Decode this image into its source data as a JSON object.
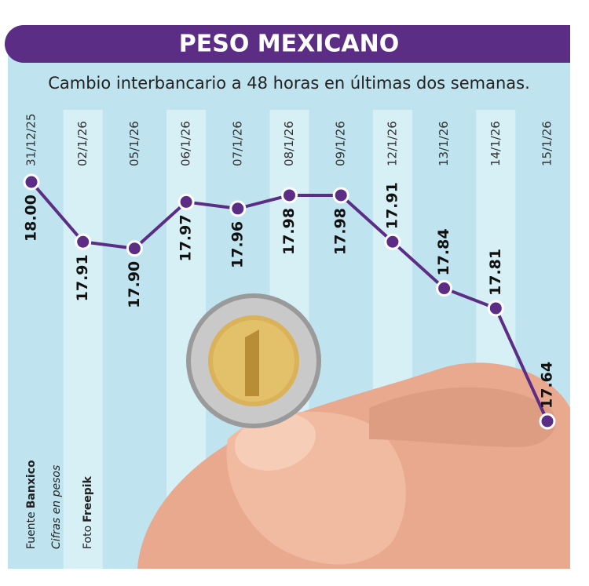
{
  "chart_data": {
    "type": "line",
    "title": "PESO MEXICANO",
    "subtitle": "Cambio interbancario a 48 horas en últimas dos semanas.",
    "categories": [
      "31/12/25",
      "02/1/26",
      "05/1/26",
      "06/1/26",
      "07/1/26",
      "08/1/26",
      "09/1/26",
      "12/1/26",
      "13/1/26",
      "14/1/26",
      "15/1/26"
    ],
    "values": [
      18.0,
      17.91,
      17.9,
      17.97,
      17.96,
      17.98,
      17.98,
      17.91,
      17.84,
      17.81,
      17.64
    ],
    "value_labels": [
      "18.00",
      "17.91",
      "17.90",
      "17.97",
      "17.96",
      "17.98",
      "17.98",
      "17.91",
      "17.84",
      "17.81",
      "17.64"
    ],
    "color": "#5b2d84",
    "source_label": "Fuente",
    "source": "Banxico",
    "note": "Cifras en pesos",
    "photo_label": "Foto",
    "photo": "Freepik"
  }
}
